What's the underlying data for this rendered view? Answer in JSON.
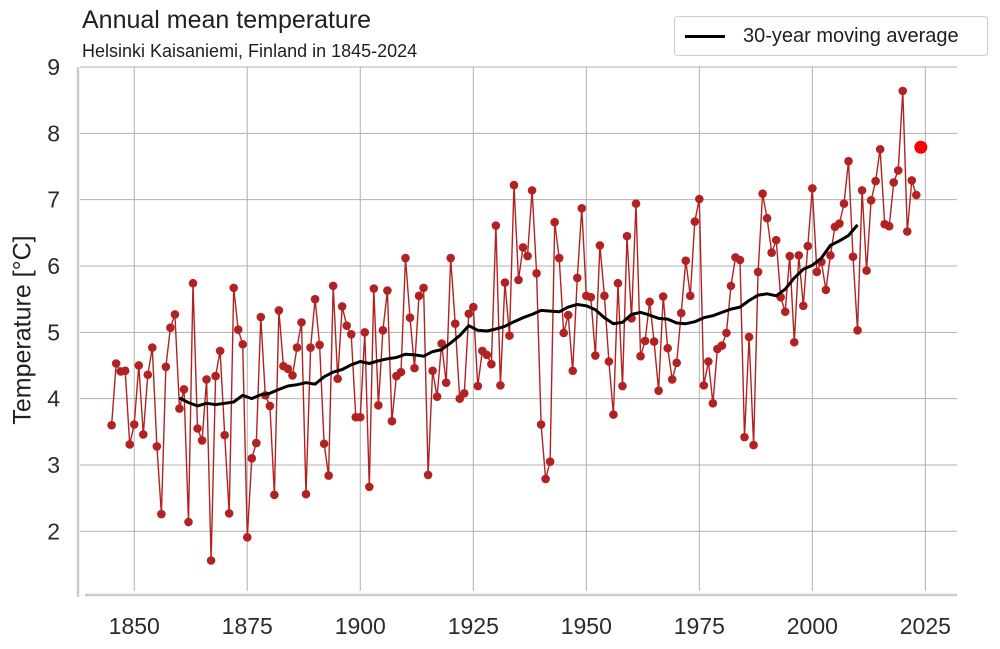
{
  "chart_data": {
    "type": "line",
    "title": "Annual mean temperature",
    "subtitle": "Helsinki Kaisaniemi, Finland in 1845-2024",
    "xlabel": "",
    "ylabel": "Temperature [°C]",
    "xlim": [
      1838,
      2032
    ],
    "ylim": [
      1.1,
      9.0
    ],
    "xticks": [
      1850,
      1875,
      1900,
      1925,
      1950,
      1975,
      2000,
      2025
    ],
    "yticks": [
      2,
      3,
      4,
      5,
      6,
      7,
      8,
      9
    ],
    "grid": true,
    "legend": {
      "position": "top-right",
      "entries": [
        "30-year moving average"
      ]
    },
    "series": [
      {
        "name": "Annual mean",
        "color": "#b22222",
        "x": [
          1845,
          1846,
          1847,
          1848,
          1849,
          1850,
          1851,
          1852,
          1853,
          1854,
          1855,
          1856,
          1857,
          1858,
          1859,
          1860,
          1861,
          1862,
          1863,
          1864,
          1865,
          1866,
          1867,
          1868,
          1869,
          1870,
          1871,
          1872,
          1873,
          1874,
          1875,
          1876,
          1877,
          1878,
          1879,
          1880,
          1881,
          1882,
          1883,
          1884,
          1885,
          1886,
          1887,
          1888,
          1889,
          1890,
          1891,
          1892,
          1893,
          1894,
          1895,
          1896,
          1897,
          1898,
          1899,
          1900,
          1901,
          1902,
          1903,
          1904,
          1905,
          1906,
          1907,
          1908,
          1909,
          1910,
          1911,
          1912,
          1913,
          1914,
          1915,
          1916,
          1917,
          1918,
          1919,
          1920,
          1921,
          1922,
          1923,
          1924,
          1925,
          1926,
          1927,
          1928,
          1929,
          1930,
          1931,
          1932,
          1933,
          1934,
          1935,
          1936,
          1937,
          1938,
          1939,
          1940,
          1941,
          1942,
          1943,
          1944,
          1945,
          1946,
          1947,
          1948,
          1949,
          1950,
          1951,
          1952,
          1953,
          1954,
          1955,
          1956,
          1957,
          1958,
          1959,
          1960,
          1961,
          1962,
          1963,
          1964,
          1965,
          1966,
          1967,
          1968,
          1969,
          1970,
          1971,
          1972,
          1973,
          1974,
          1975,
          1976,
          1977,
          1978,
          1979,
          1980,
          1981,
          1982,
          1983,
          1984,
          1985,
          1986,
          1987,
          1988,
          1989,
          1990,
          1991,
          1992,
          1993,
          1994,
          1995,
          1996,
          1997,
          1998,
          1999,
          2000,
          2001,
          2002,
          2003,
          2004,
          2005,
          2006,
          2007,
          2008,
          2009,
          2010,
          2011,
          2012,
          2013,
          2014,
          2015,
          2016,
          2017,
          2018,
          2019,
          2020,
          2021,
          2022,
          2023
        ],
        "values": [
          3.6,
          4.53,
          4.41,
          4.42,
          3.31,
          3.61,
          4.5,
          3.46,
          4.36,
          4.77,
          3.28,
          2.26,
          4.48,
          5.07,
          5.27,
          3.85,
          4.14,
          2.14,
          5.74,
          3.55,
          3.37,
          4.29,
          1.56,
          4.34,
          4.72,
          3.45,
          2.27,
          5.67,
          5.04,
          4.82,
          1.91,
          3.1,
          3.33,
          5.23,
          4.05,
          3.89,
          2.55,
          5.33,
          4.49,
          4.45,
          4.35,
          4.77,
          5.15,
          2.56,
          4.77,
          5.5,
          4.81,
          3.32,
          2.84,
          5.7,
          4.3,
          5.39,
          5.1,
          4.97,
          3.72,
          3.72,
          5.0,
          2.67,
          5.66,
          3.9,
          5.03,
          5.63,
          3.66,
          4.34,
          4.4,
          6.12,
          5.22,
          4.46,
          5.55,
          5.67,
          2.85,
          4.42,
          4.03,
          4.83,
          4.24,
          6.12,
          5.13,
          4.0,
          4.08,
          5.28,
          5.38,
          4.19,
          4.72,
          4.66,
          4.52,
          6.61,
          4.2,
          5.75,
          4.95,
          7.22,
          5.79,
          6.28,
          6.15,
          7.14,
          5.89,
          3.61,
          2.79,
          3.05,
          6.66,
          6.12,
          4.99,
          5.26,
          4.42,
          5.82,
          6.87,
          5.55,
          5.53,
          4.65,
          6.31,
          5.55,
          4.56,
          3.76,
          5.74,
          4.19,
          6.45,
          5.21,
          6.94,
          4.64,
          4.87,
          5.46,
          4.86,
          4.12,
          5.54,
          4.76,
          4.29,
          4.54,
          5.29,
          6.08,
          5.55,
          6.67,
          7.01,
          4.2,
          4.56,
          3.93,
          4.75,
          4.8,
          4.99,
          5.7,
          6.13,
          6.09,
          3.42,
          4.93,
          3.3,
          5.91,
          7.09,
          6.72,
          6.2,
          6.39,
          5.53,
          5.31,
          6.15,
          4.85,
          6.16,
          5.4,
          6.3,
          7.17,
          5.91,
          6.06,
          5.64,
          6.16,
          6.59,
          6.64,
          6.94,
          7.58,
          6.14,
          5.03,
          7.14,
          5.93,
          6.99,
          7.28,
          7.76,
          6.63,
          6.6,
          7.26,
          7.44,
          8.64,
          6.52,
          7.29,
          7.07
        ]
      },
      {
        "name": "2024",
        "color": "#ff0000",
        "x": [
          2024
        ],
        "values": [
          7.79
        ]
      },
      {
        "name": "30-year moving average",
        "color": "#000000",
        "x": [
          1860,
          1862,
          1864,
          1866,
          1868,
          1870,
          1872,
          1874,
          1876,
          1878,
          1880,
          1882,
          1884,
          1886,
          1888,
          1890,
          1892,
          1894,
          1896,
          1898,
          1900,
          1902,
          1904,
          1906,
          1908,
          1910,
          1912,
          1914,
          1916,
          1918,
          1920,
          1922,
          1924,
          1926,
          1928,
          1930,
          1932,
          1934,
          1936,
          1938,
          1940,
          1942,
          1944,
          1946,
          1948,
          1950,
          1952,
          1954,
          1956,
          1958,
          1960,
          1962,
          1964,
          1966,
          1968,
          1970,
          1972,
          1974,
          1976,
          1978,
          1980,
          1982,
          1984,
          1986,
          1988,
          1990,
          1992,
          1994,
          1996,
          1998,
          2000,
          2002,
          2004,
          2006,
          2008,
          2010
        ],
        "values": [
          4.01,
          3.94,
          3.89,
          3.93,
          3.91,
          3.93,
          3.95,
          4.05,
          4.0,
          4.06,
          4.08,
          4.14,
          4.19,
          4.21,
          4.24,
          4.22,
          4.33,
          4.4,
          4.44,
          4.51,
          4.56,
          4.53,
          4.57,
          4.6,
          4.62,
          4.67,
          4.66,
          4.64,
          4.71,
          4.74,
          4.84,
          4.95,
          5.1,
          5.03,
          5.02,
          5.05,
          5.09,
          5.16,
          5.22,
          5.27,
          5.33,
          5.32,
          5.31,
          5.38,
          5.42,
          5.4,
          5.34,
          5.22,
          5.13,
          5.15,
          5.27,
          5.3,
          5.26,
          5.21,
          5.2,
          5.14,
          5.13,
          5.16,
          5.22,
          5.25,
          5.3,
          5.35,
          5.38,
          5.48,
          5.56,
          5.58,
          5.55,
          5.65,
          5.82,
          5.95,
          6.01,
          6.12,
          6.31,
          6.38,
          6.46,
          6.62
        ]
      }
    ]
  }
}
